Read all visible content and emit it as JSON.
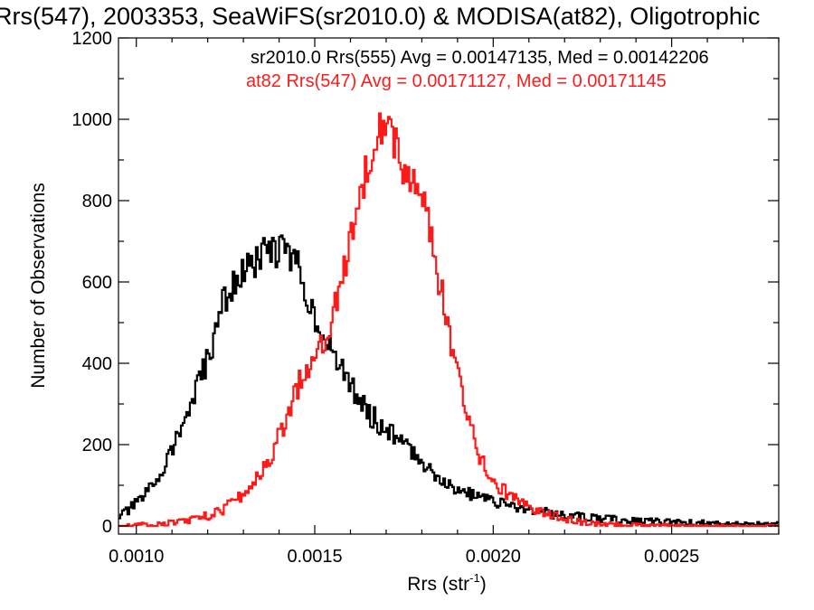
{
  "chart_data": {
    "type": "histogram-step",
    "title": "Rrs(547), 2003353, SeaWiFS(sr2010.0) & MODISA(at82), Oligotrophic",
    "xlabel": "Rrs (str",
    "xlabel_sup": "-1",
    "xlabel_suffix": ")",
    "ylabel": "Number of Observations",
    "xlim": [
      0.00095,
      0.0028
    ],
    "ylim": [
      -20,
      1200
    ],
    "xticks": [
      {
        "value": 0.001,
        "label": "0.0010"
      },
      {
        "value": 0.0015,
        "label": "0.0015"
      },
      {
        "value": 0.002,
        "label": "0.0020"
      },
      {
        "value": 0.0025,
        "label": "0.0025"
      }
    ],
    "yticks": [
      {
        "value": 0,
        "label": "0"
      },
      {
        "value": 200,
        "label": "200"
      },
      {
        "value": 400,
        "label": "400"
      },
      {
        "value": 600,
        "label": "600"
      },
      {
        "value": 800,
        "label": "800"
      },
      {
        "value": 1000,
        "label": "1000"
      },
      {
        "value": 1200,
        "label": "1200"
      }
    ],
    "legend_placement": "top-right",
    "series": [
      {
        "name": "sr2010.0 Rrs(555)",
        "legend": "sr2010.0 Rrs(555) Avg = 0.00147135, Med = 0.00142206",
        "color": "#000000",
        "x": [
          0.00095,
          0.001,
          0.00105,
          0.0011,
          0.00115,
          0.0012,
          0.00125,
          0.0013,
          0.00135,
          0.0014,
          0.00145,
          0.0015,
          0.00155,
          0.0016,
          0.00165,
          0.0017,
          0.00175,
          0.0018,
          0.00185,
          0.0019,
          0.00195,
          0.002,
          0.00205,
          0.0021,
          0.00215,
          0.0022,
          0.00225,
          0.0023,
          0.00235,
          0.0024,
          0.00245,
          0.0025,
          0.00255,
          0.0026,
          0.00265,
          0.0027,
          0.00275,
          0.0028
        ],
        "y": [
          25,
          55,
          105,
          190,
          290,
          410,
          560,
          620,
          660,
          680,
          640,
          520,
          420,
          350,
          280,
          240,
          200,
          160,
          120,
          90,
          75,
          60,
          50,
          40,
          32,
          26,
          22,
          18,
          15,
          13,
          11,
          9,
          8,
          7,
          6,
          5,
          4,
          4
        ]
      },
      {
        "name": "at82 Rrs(547)",
        "legend": "at82 Rrs(547) Avg = 0.00171127, Med = 0.00171145",
        "color": "#ff1a1a",
        "x": [
          0.00095,
          0.001,
          0.00105,
          0.0011,
          0.00115,
          0.0012,
          0.00125,
          0.0013,
          0.00135,
          0.0014,
          0.00145,
          0.0015,
          0.00155,
          0.0016,
          0.00165,
          0.0017,
          0.00175,
          0.0018,
          0.00185,
          0.0019,
          0.00195,
          0.002,
          0.00205,
          0.0021,
          0.00215,
          0.0022,
          0.00225,
          0.0023,
          0.00235,
          0.0024,
          0.00245,
          0.0025,
          0.00255,
          0.0026,
          0.00265,
          0.0027,
          0.00275,
          0.0028
        ],
        "y": [
          0,
          2,
          4,
          8,
          15,
          25,
          45,
          80,
          130,
          220,
          340,
          420,
          520,
          700,
          900,
          1000,
          870,
          800,
          600,
          380,
          200,
          110,
          75,
          50,
          30,
          18,
          10,
          6,
          3,
          2,
          1,
          1,
          0,
          0,
          0,
          0,
          0,
          0
        ]
      }
    ]
  }
}
